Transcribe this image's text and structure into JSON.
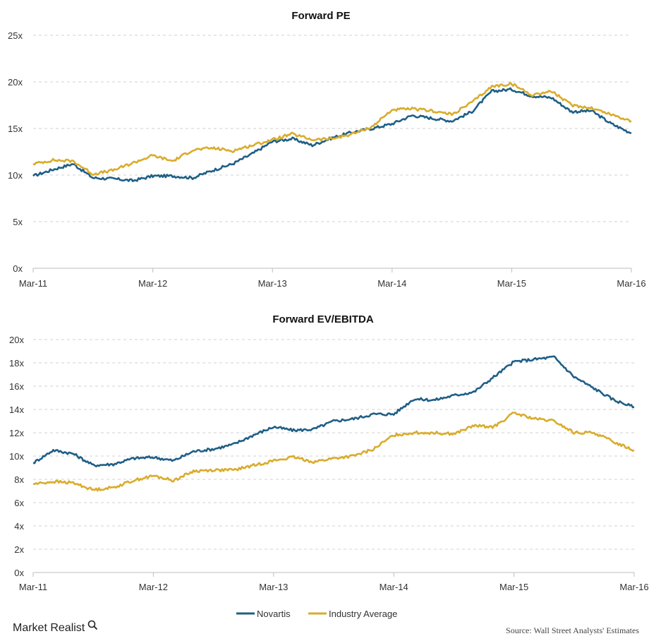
{
  "colors": {
    "novartis": "#1f5f86",
    "industry": "#d9ac2c"
  },
  "legend": {
    "novartis": "Novartis",
    "industry": "Industry Average"
  },
  "brand": {
    "name": "Market Realist",
    "icon": "magnifier-icon"
  },
  "source": "Source: Wall Street Analysts' Estimates",
  "chart_data": [
    {
      "type": "line",
      "title": "Forward PE",
      "xlabel": "",
      "ylabel": "",
      "x_ticks": [
        "Mar-11",
        "Mar-12",
        "Mar-13",
        "Mar-14",
        "Mar-15",
        "Mar-16"
      ],
      "y_ticks": [
        "0x",
        "5x",
        "10x",
        "15x",
        "20x",
        "25x"
      ],
      "ylim": [
        0,
        25
      ],
      "x": [
        "Mar-11",
        "May-11",
        "Jul-11",
        "Sep-11",
        "Nov-11",
        "Jan-12",
        "Mar-12",
        "May-12",
        "Jul-12",
        "Sep-12",
        "Nov-12",
        "Jan-13",
        "Mar-13",
        "May-13",
        "Jul-13",
        "Sep-13",
        "Nov-13",
        "Jan-14",
        "Mar-14",
        "May-14",
        "Jul-14",
        "Sep-14",
        "Nov-14",
        "Jan-15",
        "Mar-15",
        "May-15",
        "Jul-15",
        "Sep-15",
        "Nov-15",
        "Jan-16",
        "Mar-16"
      ],
      "grid": true,
      "legend_position": "bottom",
      "series": [
        {
          "name": "Novartis",
          "color_key": "novartis",
          "values": [
            9.9,
            10.6,
            11.2,
            9.7,
            9.6,
            9.4,
            9.9,
            9.9,
            9.7,
            10.5,
            11.2,
            12.3,
            13.6,
            13.9,
            13.2,
            14.0,
            14.6,
            15.0,
            15.5,
            16.4,
            16.1,
            15.8,
            16.8,
            19.0,
            19.2,
            18.5,
            18.3,
            16.8,
            16.9,
            15.5,
            14.5
          ]
        },
        {
          "name": "Industry Average",
          "color_key": "industry",
          "values": [
            11.2,
            11.6,
            11.5,
            10.1,
            10.5,
            11.3,
            12.1,
            11.5,
            12.7,
            12.9,
            12.6,
            13.2,
            13.8,
            14.4,
            13.8,
            13.9,
            14.4,
            15.2,
            17.0,
            17.1,
            16.9,
            16.5,
            17.8,
            19.5,
            19.8,
            18.6,
            19.0,
            17.5,
            17.2,
            16.5,
            15.8
          ]
        }
      ]
    },
    {
      "type": "line",
      "title": "Forward EV/EBITDA",
      "xlabel": "",
      "ylabel": "",
      "x_ticks": [
        "Mar-11",
        "Mar-12",
        "Mar-13",
        "Mar-14",
        "Mar-15",
        "Mar-16"
      ],
      "y_ticks": [
        "0x",
        "2x",
        "4x",
        "6x",
        "8x",
        "10x",
        "12x",
        "14x",
        "16x",
        "18x",
        "20x"
      ],
      "ylim": [
        0,
        20
      ],
      "x": [
        "Mar-11",
        "May-11",
        "Jul-11",
        "Sep-11",
        "Nov-11",
        "Jan-12",
        "Mar-12",
        "May-12",
        "Jul-12",
        "Sep-12",
        "Nov-12",
        "Jan-13",
        "Mar-13",
        "May-13",
        "Jul-13",
        "Sep-13",
        "Nov-13",
        "Jan-14",
        "Mar-14",
        "May-14",
        "Jul-14",
        "Sep-14",
        "Nov-14",
        "Jan-15",
        "Mar-15",
        "May-15",
        "Jul-15",
        "Sep-15",
        "Nov-15",
        "Jan-16",
        "Mar-16"
      ],
      "grid": true,
      "legend_position": "bottom",
      "series": [
        {
          "name": "Novartis",
          "color_key": "novartis",
          "values": [
            9.4,
            10.5,
            10.2,
            9.2,
            9.3,
            9.8,
            9.9,
            9.6,
            10.4,
            10.6,
            11.0,
            11.8,
            12.5,
            12.2,
            12.3,
            13.0,
            13.2,
            13.6,
            13.6,
            14.9,
            14.8,
            15.2,
            15.5,
            16.8,
            18.1,
            18.3,
            18.5,
            16.8,
            15.8,
            14.8,
            14.2
          ]
        },
        {
          "name": "Industry Average",
          "color_key": "industry",
          "values": [
            7.6,
            7.8,
            7.7,
            7.1,
            7.3,
            7.9,
            8.3,
            7.9,
            8.7,
            8.8,
            8.8,
            9.2,
            9.6,
            9.9,
            9.5,
            9.8,
            10.0,
            10.6,
            11.8,
            12.0,
            12.0,
            11.9,
            12.6,
            12.5,
            13.7,
            13.2,
            13.0,
            12.0,
            12.0,
            11.2,
            10.5
          ]
        }
      ]
    }
  ]
}
